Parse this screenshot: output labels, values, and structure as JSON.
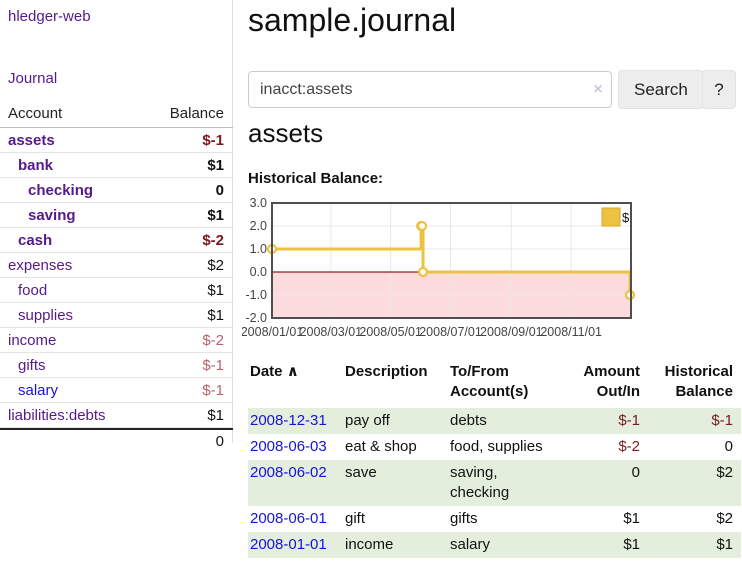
{
  "app": {
    "brand": "hledger-web"
  },
  "nav": {
    "journal": "Journal"
  },
  "sidebar": {
    "header": {
      "account": "Account",
      "balance": "Balance"
    },
    "accounts": [
      {
        "name": "assets",
        "level": 1,
        "balance": "$-1",
        "bold": true
      },
      {
        "name": "bank",
        "level": 2,
        "balance": "$1",
        "bold": true
      },
      {
        "name": "checking",
        "level": 3,
        "balance": "0",
        "bold": true
      },
      {
        "name": "saving",
        "level": 3,
        "balance": "$1",
        "bold": true
      },
      {
        "name": "cash",
        "level": 2,
        "balance": "$-2",
        "bold": true
      },
      {
        "name": "expenses",
        "level": 1,
        "balance": "$2",
        "bold": false
      },
      {
        "name": "food",
        "level": 2,
        "balance": "$1",
        "bold": false
      },
      {
        "name": "supplies",
        "level": 2,
        "balance": "$1",
        "bold": false
      },
      {
        "name": "income",
        "level": 1,
        "balance": "$-2",
        "bold": false
      },
      {
        "name": "gifts",
        "level": 2,
        "balance": "$-1",
        "bold": false
      },
      {
        "name": "salary",
        "level": 2,
        "balance": "$-1",
        "bold": false,
        "unvisited": true
      },
      {
        "name": "liabilities:debts",
        "level": 1,
        "balance": "$1",
        "bold": false
      }
    ],
    "total": "0"
  },
  "main": {
    "title": "sample.journal",
    "search": {
      "value": "inacct:assets",
      "clear": "×",
      "button": "Search",
      "help": "?"
    },
    "account_heading": "assets",
    "chart_label": "Historical Balance:"
  },
  "chart_data": {
    "type": "line",
    "step": true,
    "title": "Historical Balance",
    "series": [
      {
        "name": "$",
        "color": "#edc240",
        "points": [
          [
            "2008-01-01",
            1
          ],
          [
            "2008-06-01",
            2
          ],
          [
            "2008-06-02",
            2
          ],
          [
            "2008-06-03",
            0
          ],
          [
            "2008-12-31",
            -1
          ]
        ]
      }
    ],
    "xlim": [
      "2008-01-01",
      "2009-01-01"
    ],
    "ylim": [
      -2,
      3
    ],
    "y_ticks": [
      "3.0",
      "2.0",
      "1.0",
      "0.0",
      "-1.0",
      "-2.0"
    ],
    "x_ticks": [
      "2008/01/01",
      "2008/03/01",
      "2008/05/01",
      "2008/07/01",
      "2008/09/01",
      "2008/11/01"
    ],
    "grid": true,
    "negative_fill": "#fbdbdb",
    "zero_line_color": "#9e1a1a",
    "border_color": "#4f4f4f",
    "grid_color": "#e8e8e8",
    "legend": {
      "label": "$",
      "position": "top-right"
    }
  },
  "register": {
    "sort_arrow": "∧",
    "headers": [
      "Date",
      "Description",
      "To/From Account(s)",
      "Amount Out/In",
      "Historical Balance"
    ],
    "rows": [
      {
        "date": "2008-12-31",
        "description": "pay off",
        "accounts": "debts",
        "amount": "$-1",
        "balance": "$-1"
      },
      {
        "date": "2008-06-03",
        "description": "eat & shop",
        "accounts": "food, supplies",
        "amount": "$-2",
        "balance": "0"
      },
      {
        "date": "2008-06-02",
        "description": "save",
        "accounts": "saving, checking",
        "amount": "0",
        "balance": "$2"
      },
      {
        "date": "2008-06-01",
        "description": "gift",
        "accounts": "gifts",
        "amount": "$1",
        "balance": "$2"
      },
      {
        "date": "2008-01-01",
        "description": "income",
        "accounts": "salary",
        "amount": "$1",
        "balance": "$1"
      }
    ]
  }
}
